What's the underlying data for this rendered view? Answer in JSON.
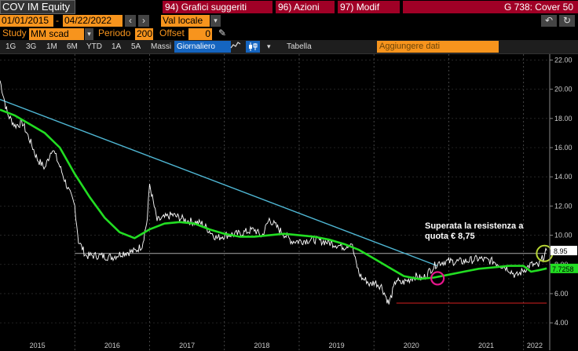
{
  "header": {
    "ticker": "COV IM Equity",
    "tabs": [
      {
        "num": "94)",
        "label": "Grafici suggeriti"
      },
      {
        "num": "96)",
        "label": "Azioni"
      },
      {
        "num": "97)",
        "label": "Modif"
      }
    ],
    "chart_id": "G 738: Cover 50"
  },
  "datebar": {
    "start_date": "01/01/2015",
    "end_date": "04/22/2022",
    "currency": "Val locale",
    "dash": "-"
  },
  "studybar": {
    "study_label": "Study",
    "study_value": "MM scad",
    "period_label": "Periodo",
    "period_value": "200",
    "offset_label": "Offset",
    "offset_value": "0"
  },
  "toolbar": {
    "ranges": [
      "1G",
      "3G",
      "1M",
      "6M",
      "YTD",
      "1A",
      "5A",
      "Massi"
    ],
    "frequency": "Giornaliero",
    "table_label": "Tabella",
    "add_data_placeholder": "Aggiungere dati"
  },
  "annotation": {
    "line1": "Superata la resistenza a",
    "line2": "quota € 8,75"
  },
  "colors": {
    "price": "#ffffff",
    "moving_average": "#22dd22",
    "trendline": "#4fb7d4",
    "resistance": "#aaaaaa",
    "support": "#d62020",
    "circle_breakout": "#b5d334",
    "circle_cross": "#e8168c",
    "accent_orange": "#f7941d",
    "button_red": "#a00026"
  },
  "chart_data": {
    "type": "line",
    "title": "",
    "xlabel": "",
    "ylabel": "",
    "ylim": [
      3.2,
      22.4
    ],
    "yticks": [
      "22.00",
      "20.00",
      "18.00",
      "16.00",
      "14.00",
      "12.00",
      "10.00",
      "8.00",
      "6.00",
      "4.00"
    ],
    "xticks": [
      "2015",
      "2016",
      "2017",
      "2018",
      "2019",
      "2020",
      "2021",
      "2022"
    ],
    "last_price": "8.95",
    "ma_value": "7.7258",
    "series": [
      {
        "role": "price",
        "x": [
          2015.0,
          2015.1,
          2015.2,
          2015.3,
          2015.4,
          2015.5,
          2015.6,
          2015.7,
          2015.8,
          2015.9,
          2016.0,
          2016.05,
          2016.15,
          2016.3,
          2016.5,
          2016.65,
          2016.8,
          2016.9,
          2016.97,
          2017.0,
          2017.1,
          2017.2,
          2017.3,
          2017.5,
          2017.7,
          2017.9,
          2018.0,
          2018.2,
          2018.4,
          2018.5,
          2018.6,
          2018.75,
          2018.9,
          2019.0,
          2019.2,
          2019.4,
          2019.6,
          2019.7,
          2019.75,
          2019.8,
          2019.85,
          2019.9,
          2019.95,
          2020.0,
          2020.1,
          2020.15,
          2020.2,
          2020.3,
          2020.35,
          2020.45,
          2020.55,
          2020.65,
          2020.75,
          2020.85,
          2020.95,
          2021.0,
          2021.2,
          2021.4,
          2021.6,
          2021.8,
          2021.9,
          2022.0,
          2022.1,
          2022.2,
          2022.31
        ],
        "values": [
          20.6,
          18.3,
          17.5,
          17.7,
          16.5,
          15.2,
          14.6,
          16.0,
          14.7,
          13.3,
          12.0,
          9.6,
          8.6,
          8.6,
          8.5,
          8.8,
          8.9,
          9.3,
          11.1,
          13.5,
          11.0,
          11.2,
          11.4,
          11.0,
          10.8,
          9.8,
          10.0,
          10.1,
          10.4,
          9.9,
          11.1,
          10.3,
          9.6,
          9.6,
          9.7,
          9.5,
          9.2,
          9.5,
          8.3,
          7.4,
          7.0,
          6.9,
          6.6,
          6.8,
          6.5,
          5.9,
          5.3,
          7.0,
          6.7,
          6.9,
          7.2,
          7.0,
          7.6,
          8.1,
          8.2,
          8.2,
          8.2,
          8.4,
          8.2,
          7.7,
          7.2,
          7.6,
          8.0,
          7.9,
          8.95
        ]
      },
      {
        "role": "moving_average",
        "x": [
          2015.0,
          2015.2,
          2015.4,
          2015.6,
          2015.8,
          2016.0,
          2016.2,
          2016.4,
          2016.6,
          2016.8,
          2017.0,
          2017.2,
          2017.4,
          2017.6,
          2017.8,
          2018.0,
          2018.2,
          2018.4,
          2018.6,
          2018.8,
          2019.0,
          2019.2,
          2019.4,
          2019.6,
          2019.8,
          2020.0,
          2020.2,
          2020.4,
          2020.6,
          2020.8,
          2021.0,
          2021.2,
          2021.4,
          2021.6,
          2021.8,
          2022.0,
          2022.1,
          2022.2,
          2022.31
        ],
        "values": [
          18.6,
          18.2,
          17.6,
          17.0,
          16.0,
          14.2,
          12.6,
          11.2,
          10.2,
          9.8,
          10.4,
          10.8,
          10.9,
          10.8,
          10.4,
          10.1,
          9.9,
          9.9,
          10.0,
          10.1,
          10.0,
          9.9,
          9.7,
          9.4,
          9.0,
          8.4,
          7.8,
          7.2,
          7.0,
          7.1,
          7.3,
          7.5,
          7.7,
          7.8,
          7.9,
          7.9,
          7.5,
          7.6,
          7.7258
        ]
      }
    ],
    "trendline": {
      "x": [
        2015.0,
        2020.85
      ],
      "values": [
        19.3,
        7.9
      ]
    },
    "resistance": {
      "x": [
        2016.0,
        2022.31
      ],
      "values": [
        8.75,
        8.75
      ]
    },
    "support": {
      "x": [
        2020.3,
        2022.31
      ],
      "values": [
        5.35,
        5.35
      ]
    }
  }
}
